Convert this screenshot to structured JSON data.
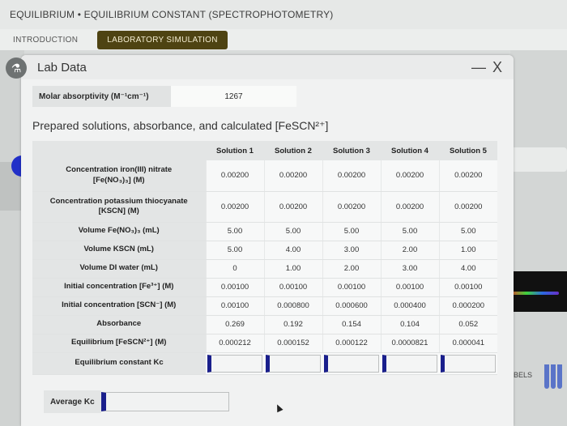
{
  "header": {
    "breadcrumb": "EQUILIBRIUM • EQUILIBRIUM CONSTANT (SPECTROPHOTOMETRY)"
  },
  "tabs": [
    {
      "label": "INTRODUCTION",
      "active": false
    },
    {
      "label": "LABORATORY SIMULATION",
      "active": true
    }
  ],
  "panel": {
    "title": "Lab Data",
    "minimize": "—",
    "close": "X",
    "icon": "flask-icon"
  },
  "molar": {
    "label": "Molar absorptivity (M⁻¹cm⁻¹)",
    "value": "1267"
  },
  "section_title": "Prepared solutions, absorbance, and calculated [FeSCN²⁺]",
  "table": {
    "columns": [
      "Solution 1",
      "Solution 2",
      "Solution 3",
      "Solution 4",
      "Solution 5"
    ],
    "rows": [
      {
        "label_line1": "Concentration iron(III) nitrate",
        "label_line2": "[Fe(NO₃)₃] (M)",
        "values": [
          "0.00200",
          "0.00200",
          "0.00200",
          "0.00200",
          "0.00200"
        ]
      },
      {
        "label_line1": "Concentration potassium thiocyanate",
        "label_line2": "[KSCN] (M)",
        "values": [
          "0.00200",
          "0.00200",
          "0.00200",
          "0.00200",
          "0.00200"
        ]
      },
      {
        "label": "Volume Fe(NO₃)₃ (mL)",
        "values": [
          "5.00",
          "5.00",
          "5.00",
          "5.00",
          "5.00"
        ]
      },
      {
        "label": "Volume KSCN (mL)",
        "values": [
          "5.00",
          "4.00",
          "3.00",
          "2.00",
          "1.00"
        ]
      },
      {
        "label": "Volume DI water (mL)",
        "values": [
          "0",
          "1.00",
          "2.00",
          "3.00",
          "4.00"
        ]
      },
      {
        "label": "Initial concentration [Fe³⁺] (M)",
        "values": [
          "0.00100",
          "0.00100",
          "0.00100",
          "0.00100",
          "0.00100"
        ]
      },
      {
        "label": "Initial concentration [SCN⁻] (M)",
        "values": [
          "0.00100",
          "0.000800",
          "0.000600",
          "0.000400",
          "0.000200"
        ]
      },
      {
        "label": "Absorbance",
        "values": [
          "0.269",
          "0.192",
          "0.154",
          "0.104",
          "0.052"
        ]
      },
      {
        "label": "Equilibrium [FeSCN²⁺] (M)",
        "values": [
          "0.000212",
          "0.000152",
          "0.000122",
          "0.0000821",
          "0.000041"
        ]
      }
    ],
    "kc_row": {
      "label": "Equilibrium constant Kc",
      "values": [
        "",
        "",
        "",
        "",
        ""
      ]
    }
  },
  "average": {
    "label": "Average Kc",
    "value": ""
  },
  "background": {
    "labels_text": "ABELS"
  }
}
